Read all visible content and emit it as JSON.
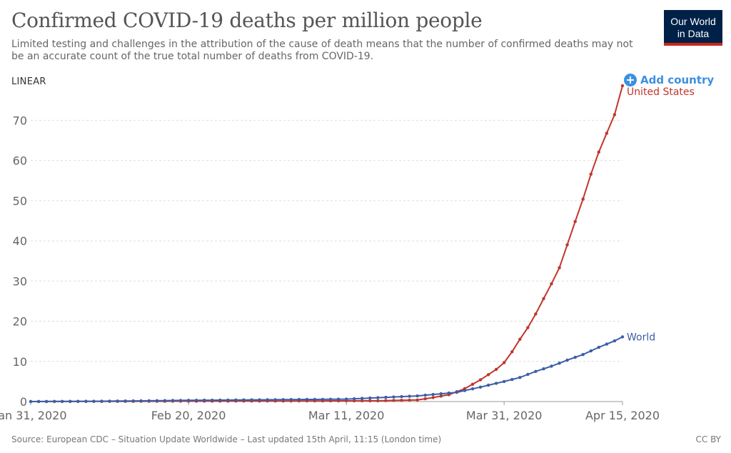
{
  "title": "Confirmed COVID-19 deaths per million people",
  "subtitle": "Limited testing and challenges in the attribution of the cause of death means that the number of confirmed deaths may not be an accurate count of the true total number of deaths from COVID-19.",
  "logo": {
    "line1": "Our World",
    "line2": "in Data"
  },
  "scale_toggle": "LINEAR",
  "add_country": {
    "label": "Add country",
    "icon": "plus-circle-icon"
  },
  "footer": {
    "source": "Source: European CDC – Situation Update Worldwide – Last updated 15th April, 11:15 (London time)",
    "license": "CC BY"
  },
  "colors": {
    "us": "#c0362c",
    "world": "#3b5ea7",
    "grid": "#dddddd",
    "accent": "#3d8fe0"
  },
  "chart_data": {
    "type": "line",
    "x_start": "2020-01-31",
    "x_end": "2020-04-15",
    "x_ticks": [
      {
        "date": "2020-01-31",
        "label": "Jan 31, 2020"
      },
      {
        "date": "2020-02-20",
        "label": "Feb 20, 2020"
      },
      {
        "date": "2020-03-11",
        "label": "Mar 11, 2020"
      },
      {
        "date": "2020-03-31",
        "label": "Mar 31, 2020"
      },
      {
        "date": "2020-04-15",
        "label": "Apr 15, 2020"
      }
    ],
    "ylim": [
      0,
      78.6
    ],
    "y_ticks": [
      0,
      10,
      20,
      30,
      40,
      50,
      60,
      70
    ],
    "grid": true,
    "series": [
      {
        "name": "United States",
        "color": "#c0362c",
        "points": [
          [
            "2020-01-31",
            0
          ],
          [
            "2020-03-15",
            0.2
          ],
          [
            "2020-03-20",
            0.4
          ],
          [
            "2020-03-22",
            1.0
          ],
          [
            "2020-03-24",
            1.7
          ],
          [
            "2020-03-26",
            3.2
          ],
          [
            "2020-03-27",
            4.3
          ],
          [
            "2020-03-28",
            5.4
          ],
          [
            "2020-03-29",
            6.7
          ],
          [
            "2020-03-30",
            8.0
          ],
          [
            "2020-03-31",
            9.7
          ],
          [
            "2020-04-01",
            12.4
          ],
          [
            "2020-04-02",
            15.5
          ],
          [
            "2020-04-03",
            18.4
          ],
          [
            "2020-04-04",
            21.8
          ],
          [
            "2020-04-05",
            25.6
          ],
          [
            "2020-04-06",
            29.3
          ],
          [
            "2020-04-07",
            33.3
          ],
          [
            "2020-04-08",
            39.0
          ],
          [
            "2020-04-09",
            44.8
          ],
          [
            "2020-04-10",
            50.4
          ],
          [
            "2020-04-11",
            56.6
          ],
          [
            "2020-04-12",
            62.1
          ],
          [
            "2020-04-13",
            66.8
          ],
          [
            "2020-04-14",
            71.4
          ],
          [
            "2020-04-15",
            78.6
          ]
        ]
      },
      {
        "name": "World",
        "color": "#3b5ea7",
        "points": [
          [
            "2020-01-31",
            0
          ],
          [
            "2020-02-10",
            0.1
          ],
          [
            "2020-02-20",
            0.3
          ],
          [
            "2020-03-11",
            0.6
          ],
          [
            "2020-03-20",
            1.4
          ],
          [
            "2020-03-25",
            2.3
          ],
          [
            "2020-03-28",
            3.6
          ],
          [
            "2020-03-31",
            5.0
          ],
          [
            "2020-04-02",
            6.0
          ],
          [
            "2020-04-04",
            7.5
          ],
          [
            "2020-04-06",
            8.8
          ],
          [
            "2020-04-08",
            10.3
          ],
          [
            "2020-04-10",
            11.7
          ],
          [
            "2020-04-12",
            13.5
          ],
          [
            "2020-04-14",
            15.1
          ],
          [
            "2020-04-15",
            16.1
          ]
        ]
      }
    ]
  }
}
